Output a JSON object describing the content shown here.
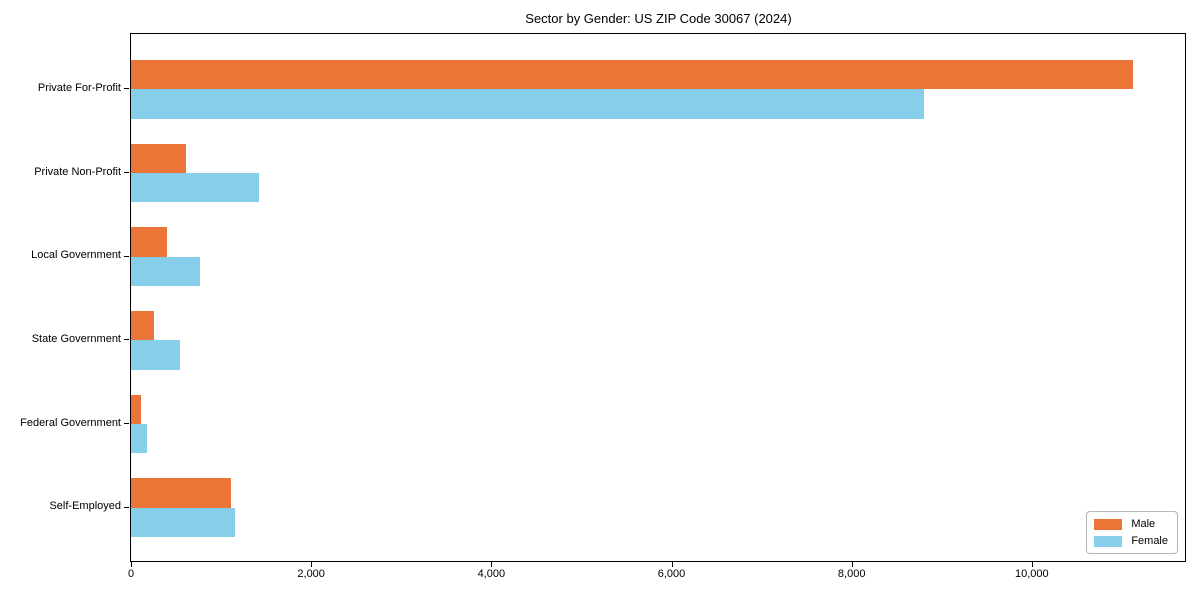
{
  "chart_data": {
    "type": "bar",
    "orientation": "horizontal",
    "title": "Sector by Gender: US ZIP Code 30067 (2024)",
    "categories": [
      "Private For-Profit",
      "Private Non-Profit",
      "Local Government",
      "State Government",
      "Federal Government",
      "Self-Employed"
    ],
    "series": [
      {
        "name": "Male",
        "color": "#eb7536",
        "values": [
          11120,
          610,
          395,
          255,
          110,
          1115
        ]
      },
      {
        "name": "Female",
        "color": "#87ceeb",
        "values": [
          8800,
          1420,
          770,
          540,
          175,
          1155
        ]
      }
    ],
    "xlabel": "",
    "ylabel": "",
    "xlim": [
      0,
      11700
    ],
    "x_ticks": [
      0,
      2000,
      4000,
      6000,
      8000,
      10000
    ],
    "x_tick_labels": [
      "0",
      "2,000",
      "4,000",
      "6,000",
      "8,000",
      "10,000"
    ],
    "grid": false,
    "legend_position": "lower right"
  }
}
